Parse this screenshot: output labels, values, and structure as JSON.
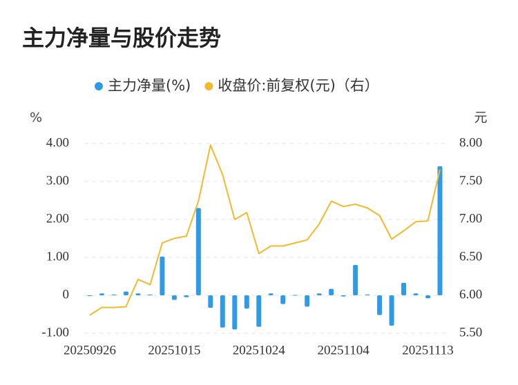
{
  "chart_data": {
    "type": "bar-line",
    "title": "主力净量与股价走势",
    "y_label": "%",
    "y2_label": "元",
    "categories": [
      "20250926",
      null,
      null,
      null,
      null,
      null,
      null,
      "20251015",
      null,
      null,
      null,
      null,
      null,
      null,
      "20251024",
      null,
      null,
      null,
      null,
      null,
      null,
      "20251104",
      null,
      null,
      null,
      null,
      null,
      null,
      "20251113",
      null
    ],
    "series": [
      {
        "name": "主力净量(%)",
        "color": "#2f9ae8",
        "type": "bar",
        "values": [
          -0.02,
          0.05,
          0.02,
          0.1,
          0.05,
          0.02,
          1.02,
          -0.12,
          -0.05,
          2.3,
          -0.33,
          -0.85,
          -0.9,
          -0.35,
          -0.83,
          0.05,
          -0.23,
          0.01,
          -0.3,
          0.05,
          0.17,
          -0.03,
          0.8,
          0.02,
          -0.52,
          -0.8,
          0.33,
          0.05,
          -0.08,
          3.4
        ]
      },
      {
        "name": "收盘价:前复权(元)（右）",
        "color": "#f5b82a",
        "type": "line",
        "axis": "y2",
        "values": [
          5.74,
          5.84,
          5.84,
          5.85,
          6.21,
          6.14,
          6.69,
          6.75,
          6.78,
          7.24,
          7.98,
          7.59,
          7.0,
          7.09,
          6.55,
          6.65,
          6.65,
          6.69,
          6.73,
          6.94,
          7.24,
          7.17,
          7.2,
          7.15,
          7.05,
          6.74,
          6.85,
          6.97,
          6.98,
          7.66
        ]
      }
    ],
    "ylim": [
      -1,
      4
    ],
    "yticks": [
      {
        "value": -1,
        "label": "-1.00"
      },
      0,
      {
        "value": 1,
        "label": "1.00"
      },
      {
        "value": 2,
        "label": "2.00"
      },
      {
        "value": 3,
        "label": "3.00"
      },
      {
        "value": 4,
        "label": "4.00"
      }
    ],
    "y2lim": [
      5.5,
      8
    ],
    "y2ticks": [
      {
        "value": 5.5,
        "label": "5.50"
      },
      {
        "value": 6,
        "label": "6.00"
      },
      {
        "value": 6.5,
        "label": "6.50"
      },
      {
        "value": 7,
        "label": "7.00"
      },
      {
        "value": 7.5,
        "label": "7.50"
      },
      {
        "value": 8,
        "label": "8.00"
      }
    ],
    "grid": true
  }
}
